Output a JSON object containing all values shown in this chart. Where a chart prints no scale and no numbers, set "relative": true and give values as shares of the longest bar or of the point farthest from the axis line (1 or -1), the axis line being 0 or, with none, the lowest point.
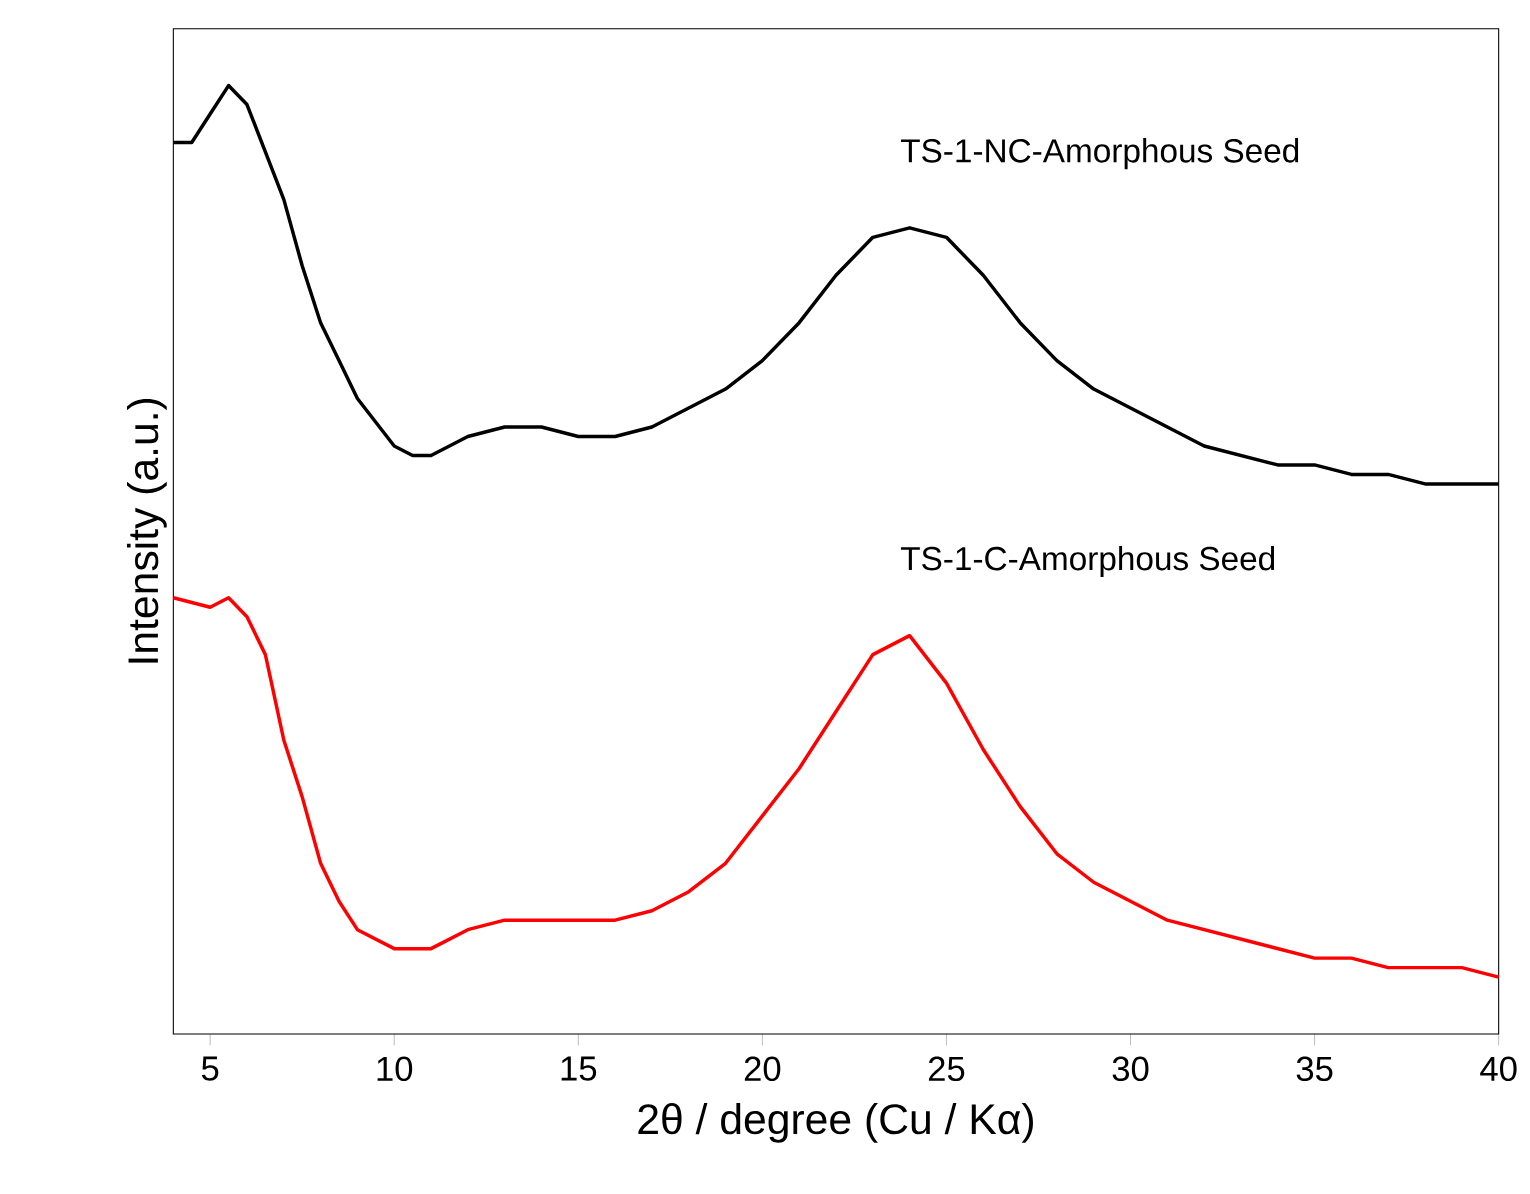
{
  "chart_data": {
    "type": "line",
    "xlabel": "2θ / degree (Cu / Kα)",
    "ylabel": "Intensity (a.u.)",
    "relative": true,
    "xlim": [
      4,
      40
    ],
    "xticks": [
      5,
      10,
      15,
      20,
      25,
      30,
      35,
      40
    ],
    "grid": false,
    "series": [
      {
        "name": "TS-1-NC-Amorphous Seed",
        "color": "#000000",
        "x": [
          4,
          4.5,
          5,
          5.5,
          6,
          6.5,
          7,
          7.5,
          8,
          8.5,
          9,
          10,
          10.5,
          11,
          12,
          13,
          14,
          15,
          16,
          17,
          18,
          19,
          20,
          21,
          22,
          23,
          24,
          25,
          26,
          27,
          28,
          29,
          30,
          31,
          32,
          33,
          34,
          35,
          36,
          37,
          38,
          39,
          40
        ],
        "values": [
          0.94,
          0.94,
          0.97,
          1.0,
          0.98,
          0.93,
          0.88,
          0.81,
          0.75,
          0.71,
          0.67,
          0.62,
          0.61,
          0.61,
          0.63,
          0.64,
          0.64,
          0.63,
          0.63,
          0.64,
          0.66,
          0.68,
          0.71,
          0.75,
          0.8,
          0.84,
          0.85,
          0.84,
          0.8,
          0.75,
          0.71,
          0.68,
          0.66,
          0.64,
          0.62,
          0.61,
          0.6,
          0.6,
          0.59,
          0.59,
          0.58,
          0.58,
          0.58
        ]
      },
      {
        "name": "TS-1-C-Amorphous Seed",
        "color": "#ff0000",
        "x": [
          4,
          5,
          5.5,
          6,
          6.5,
          7,
          7.5,
          8,
          8.5,
          9,
          10,
          11,
          12,
          13,
          14,
          15,
          16,
          17,
          18,
          19,
          20,
          21,
          22,
          23,
          24,
          25,
          26,
          27,
          28,
          29,
          30,
          31,
          32,
          33,
          34,
          35,
          36,
          37,
          38,
          39,
          40
        ],
        "values": [
          0.46,
          0.45,
          0.46,
          0.44,
          0.4,
          0.31,
          0.25,
          0.18,
          0.14,
          0.11,
          0.09,
          0.09,
          0.11,
          0.12,
          0.12,
          0.12,
          0.12,
          0.13,
          0.15,
          0.18,
          0.23,
          0.28,
          0.34,
          0.4,
          0.42,
          0.37,
          0.3,
          0.24,
          0.19,
          0.16,
          0.14,
          0.12,
          0.11,
          0.1,
          0.09,
          0.08,
          0.08,
          0.07,
          0.07,
          0.07,
          0.06
        ]
      }
    ]
  }
}
